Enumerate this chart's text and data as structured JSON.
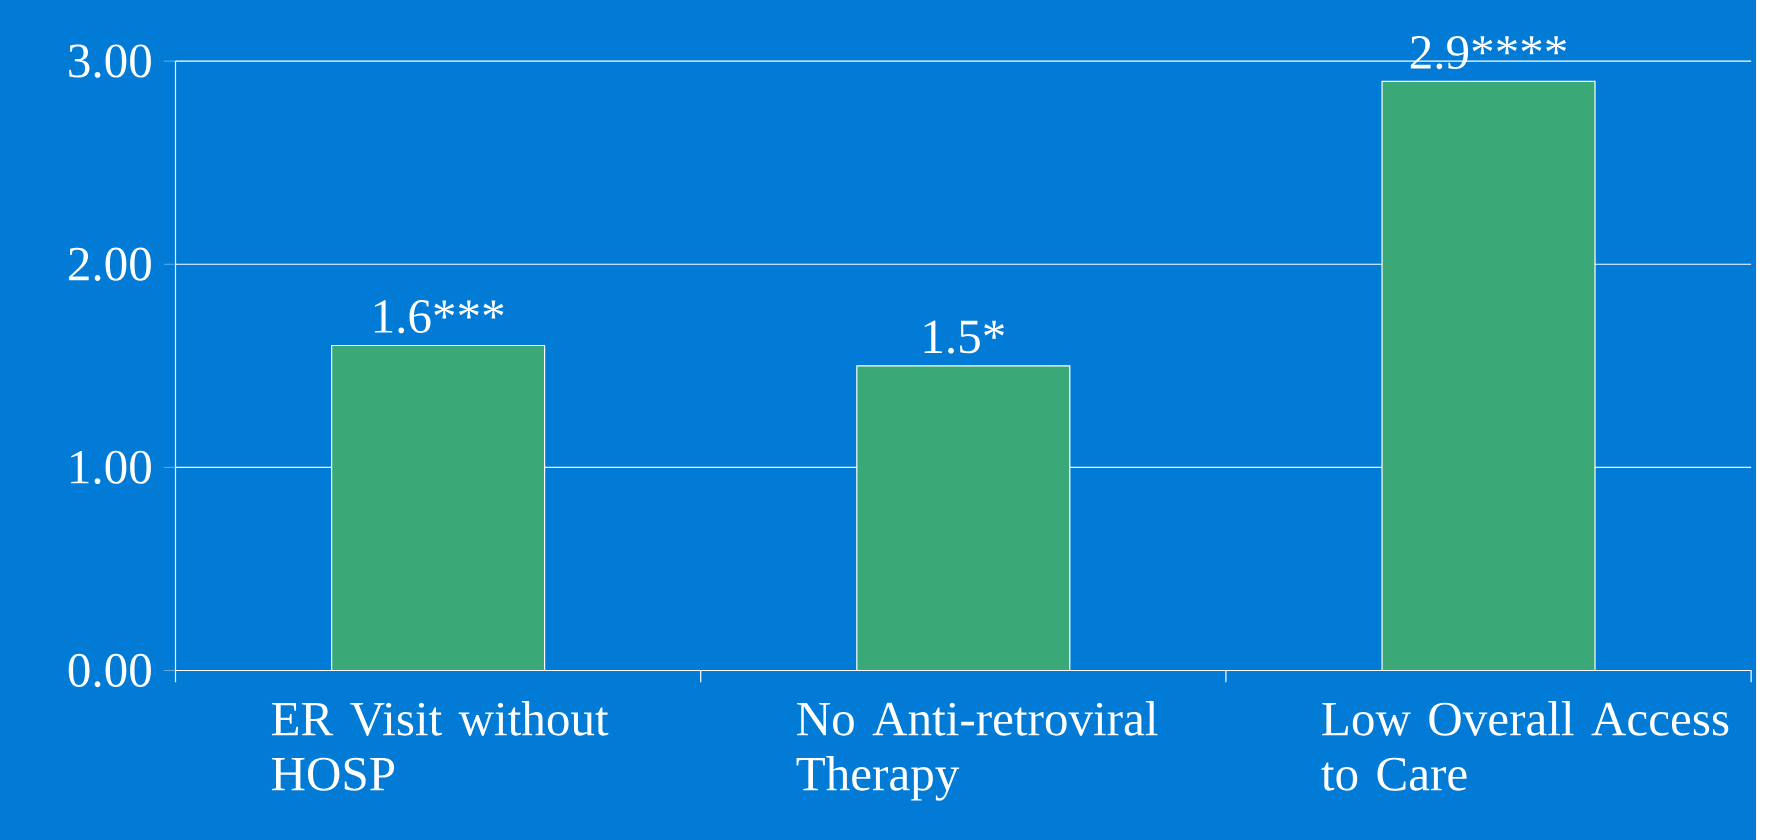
{
  "chart_data": {
    "type": "bar",
    "categories": [
      "ER Visit without HOSP",
      "No Anti-retroviral Therapy",
      "Low Overall Access to Care"
    ],
    "values": [
      1.6,
      1.5,
      2.9
    ],
    "value_labels": [
      "1.6***",
      "1.5*",
      "2.9****"
    ],
    "color": "#3aa877",
    "ylim": [
      0,
      3
    ],
    "yticks": [
      {
        "value": 0,
        "label": "0.00"
      },
      {
        "value": 1,
        "label": "1.00"
      },
      {
        "value": 2,
        "label": "2.00"
      },
      {
        "value": 3,
        "label": "3.00"
      }
    ],
    "grid": "y"
  }
}
